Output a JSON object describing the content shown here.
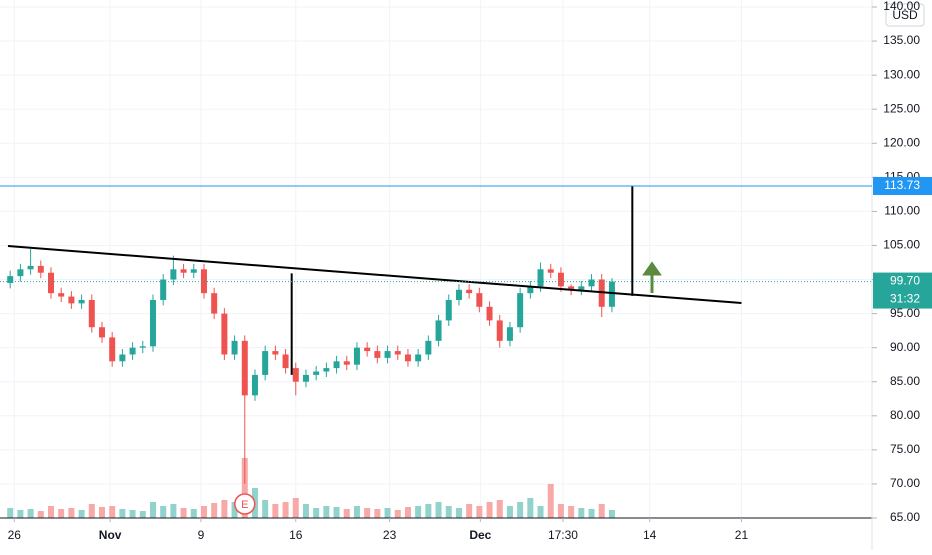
{
  "chart_data": {
    "type": "candlestick",
    "currency": "USD",
    "x": [
      1,
      2,
      3,
      4,
      5,
      6,
      7,
      8,
      9,
      10,
      11,
      12,
      13,
      14,
      15,
      16,
      17,
      18,
      19,
      20,
      21,
      22,
      23,
      24,
      25,
      26,
      27,
      28,
      29,
      30,
      31,
      32,
      33,
      34,
      35,
      36,
      37,
      38,
      39,
      40,
      41,
      42,
      43,
      44,
      45,
      46,
      47,
      48,
      49,
      50,
      51,
      52,
      53,
      54,
      55,
      56,
      57,
      58,
      59,
      60
    ],
    "open": [
      99.5,
      100.5,
      101.5,
      102,
      101,
      98,
      97.5,
      96.5,
      97,
      93,
      91.5,
      88,
      89,
      90,
      90.2,
      97,
      100,
      101.5,
      101,
      101.5,
      98,
      95,
      89,
      91,
      83,
      86,
      89.5,
      89,
      87,
      85,
      86,
      86.5,
      87,
      88,
      87.5,
      90,
      89.5,
      88.5,
      89.5,
      89,
      88,
      89,
      91,
      94,
      97,
      98.5,
      98,
      96,
      94,
      91,
      93,
      98,
      99,
      101.5,
      101,
      99,
      98.5,
      99,
      100,
      96
    ],
    "close": [
      100.5,
      101.5,
      102,
      101,
      98,
      97.5,
      96.5,
      97,
      93,
      91.5,
      88,
      89,
      90,
      90.2,
      97,
      100,
      101.5,
      101,
      101.5,
      98,
      95,
      89,
      91,
      83,
      86,
      89.5,
      89,
      87,
      85,
      86,
      86.5,
      87,
      88,
      87.5,
      90,
      89.5,
      88.5,
      89.5,
      89,
      88,
      89,
      91,
      94,
      97,
      98.5,
      98,
      96,
      94,
      91,
      93,
      98,
      99,
      101.5,
      101,
      99,
      98.5,
      99,
      100,
      96,
      99.7
    ],
    "high": [
      101.3,
      102.3,
      104.5,
      102.8,
      101.8,
      98.8,
      98.3,
      97.8,
      97.8,
      93.8,
      92.3,
      89.8,
      90.8,
      91,
      97.8,
      100.8,
      103.5,
      102.3,
      102.3,
      102.3,
      98.8,
      95.8,
      91.8,
      91.8,
      86.8,
      90.3,
      90.3,
      89.8,
      87.8,
      86.8,
      87.3,
      87.8,
      88.8,
      88.8,
      90.8,
      90.8,
      90.3,
      90.3,
      90.3,
      89.8,
      89.8,
      91.8,
      94.8,
      97.8,
      99.3,
      99.3,
      98.8,
      96.8,
      94.8,
      93.8,
      98.8,
      99.8,
      102.5,
      102.3,
      101.8,
      99.3,
      99.8,
      100.8,
      100.8,
      100.2
    ],
    "low": [
      98.7,
      99.7,
      100.7,
      100.2,
      97.2,
      96.7,
      95.7,
      95.7,
      92.2,
      90.7,
      87.2,
      87.2,
      88.2,
      89.2,
      89.4,
      96.2,
      99.2,
      100.2,
      100.2,
      97.2,
      94.2,
      88.2,
      88.2,
      70,
      82.2,
      85.2,
      88.2,
      86.2,
      83,
      84.2,
      85.2,
      85.7,
      86.2,
      86.7,
      86.7,
      88.7,
      87.7,
      87.7,
      88.2,
      87.2,
      87.2,
      88.2,
      90.2,
      93.2,
      96.2,
      97.2,
      95.2,
      93.2,
      90,
      90.2,
      92.2,
      97.2,
      98.2,
      100.2,
      98.2,
      97.7,
      97.7,
      98.2,
      94.5,
      95.2
    ],
    "volume": [
      10,
      8,
      9,
      7,
      12,
      9,
      10,
      8,
      14,
      11,
      12,
      9,
      8,
      7,
      16,
      12,
      14,
      10,
      9,
      12,
      15,
      18,
      16,
      60,
      30,
      18,
      14,
      16,
      20,
      14,
      10,
      12,
      11,
      9,
      12,
      10,
      9,
      10,
      8,
      11,
      12,
      14,
      16,
      12,
      10,
      14,
      12,
      16,
      18,
      12,
      16,
      20,
      12,
      34,
      14,
      12,
      10,
      9,
      14,
      8
    ],
    "up_color": "#26a69a",
    "down_color": "#ef5350",
    "up_volume_color": "#92d2cc",
    "down_volume_color": "#f7a9a7",
    "xlim": [
      0,
      85.5
    ],
    "ylim": [
      65,
      140
    ],
    "xticks": [
      {
        "value": 1.4,
        "label": "26"
      },
      {
        "value": 10.8,
        "label": "Nov"
      },
      {
        "value": 19.7,
        "label": "9"
      },
      {
        "value": 29.0,
        "label": "16"
      },
      {
        "value": 38.2,
        "label": "23"
      },
      {
        "value": 47.1,
        "label": "Dec"
      },
      {
        "value": 55.2,
        "label": "17:30"
      },
      {
        "value": 63.7,
        "label": "14"
      },
      {
        "value": 72.7,
        "label": "21"
      }
    ],
    "yticks": [
      {
        "value": 65,
        "label": "65.00"
      },
      {
        "value": 70,
        "label": "70.00"
      },
      {
        "value": 75,
        "label": "75.00"
      },
      {
        "value": 80,
        "label": "80.00"
      },
      {
        "value": 85,
        "label": "85.00"
      },
      {
        "value": 90,
        "label": "90.00"
      },
      {
        "value": 95,
        "label": "95.00"
      },
      {
        "value": 100,
        "label": "100.00"
      },
      {
        "value": 105,
        "label": "105.00"
      },
      {
        "value": 110,
        "label": "110.00"
      },
      {
        "value": 115,
        "label": "115.00"
      },
      {
        "value": 120,
        "label": "120.00"
      },
      {
        "value": 125,
        "label": "125.00"
      },
      {
        "value": 130,
        "label": "130.00"
      },
      {
        "value": 135,
        "label": "135.00"
      },
      {
        "value": 140,
        "label": "140.00"
      }
    ],
    "grid": true,
    "horizontal_line": {
      "value": 113.73,
      "label": "113.73",
      "color": "#2196f3"
    },
    "last_price": {
      "value": 99.7,
      "label": "99.70",
      "color": "#26a69a"
    },
    "countdown": "31:32",
    "event": "E",
    "trendline": {
      "x": [
        0.78,
        72.7
      ],
      "y": [
        104.92,
        96.55
      ]
    },
    "vertical_lines": [
      {
        "x": 28.6,
        "y": [
          100.9,
          86.0
        ]
      },
      {
        "x": 62.0,
        "y": [
          113.73,
          97.6
        ]
      }
    ]
  }
}
